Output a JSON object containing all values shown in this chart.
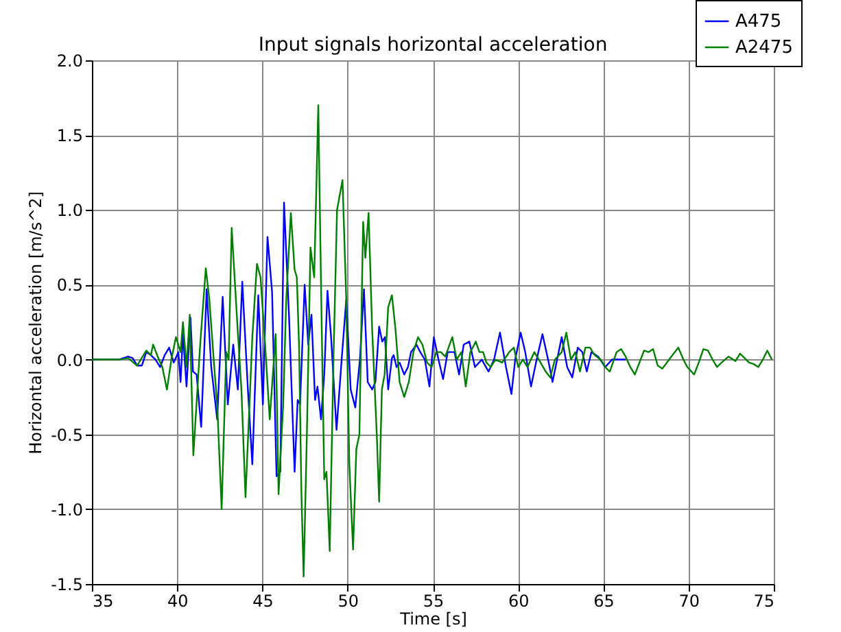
{
  "chart_data": {
    "type": "line",
    "title": "Input signals horizontal acceleration",
    "xlabel": "Time [s]",
    "ylabel": "Horizontal acceleration [m/s^2]",
    "xlim": [
      35,
      75
    ],
    "xticks": [
      35,
      40,
      45,
      50,
      55,
      60,
      65,
      70,
      75
    ],
    "ylim": [
      -1.5,
      2.0
    ],
    "yticks": [
      {
        "value": -1.5,
        "label": "-1.5"
      },
      {
        "value": -1.0,
        "label": "-1.0"
      },
      {
        "value": -0.5,
        "label": "-0.5"
      },
      {
        "value": 0.0,
        "label": "0.0"
      },
      {
        "value": 0.5,
        "label": "0.5"
      },
      {
        "value": 1.0,
        "label": "1.0"
      },
      {
        "value": 1.5,
        "label": "1.5"
      },
      {
        "value": 2.0,
        "label": "2.0"
      }
    ],
    "grid": true,
    "legend": "top right",
    "marker": "none",
    "line_style": "solid",
    "series": [
      {
        "name": "A475",
        "color": "#0000ff",
        "x": [
          35.0,
          36.58,
          37.12,
          37.39,
          37.66,
          37.93,
          38.19,
          38.46,
          38.73,
          39.0,
          39.27,
          39.53,
          39.8,
          40.07,
          40.2,
          40.34,
          40.55,
          40.78,
          40.93,
          41.14,
          41.41,
          41.73,
          42.0,
          42.35,
          42.67,
          42.97,
          43.29,
          43.56,
          43.82,
          44.15,
          44.41,
          44.76,
          45.03,
          45.3,
          45.57,
          45.83,
          46.05,
          46.27,
          46.56,
          46.89,
          47.07,
          47.21,
          47.48,
          47.69,
          47.88,
          48.09,
          48.23,
          48.44,
          48.63,
          48.82,
          49.03,
          49.35,
          49.65,
          49.92,
          50.18,
          50.45,
          50.72,
          50.96,
          51.18,
          51.44,
          51.63,
          51.85,
          52.03,
          52.19,
          52.38,
          52.6,
          52.7,
          52.87,
          53.05,
          53.32,
          53.54,
          53.72,
          54.04,
          54.26,
          54.53,
          54.8,
          55.06,
          55.33,
          55.6,
          55.87,
          56.27,
          56.54,
          56.81,
          57.14,
          57.47,
          57.87,
          58.27,
          58.59,
          58.94,
          59.29,
          59.61,
          59.83,
          60.15,
          60.42,
          60.76,
          61.09,
          61.43,
          61.76,
          62.02,
          62.29,
          62.56,
          62.88,
          63.18,
          63.5,
          63.77,
          64.03,
          64.3,
          64.7,
          65.11,
          65.51,
          66.31
        ],
        "values": [
          0,
          0,
          0.02,
          0.01,
          -0.04,
          -0.04,
          0.05,
          0.03,
          0.0,
          -0.05,
          0.03,
          0.08,
          -0.02,
          0.05,
          -0.15,
          0.17,
          -0.18,
          0.28,
          -0.08,
          -0.1,
          -0.45,
          0.47,
          -0.05,
          -0.4,
          0.42,
          -0.3,
          0.1,
          -0.2,
          0.52,
          -0.2,
          -0.7,
          0.43,
          -0.3,
          0.82,
          0.45,
          -0.78,
          -0.75,
          1.05,
          0.3,
          -0.75,
          -0.27,
          -0.3,
          0.5,
          0.1,
          0.3,
          -0.27,
          -0.18,
          -0.4,
          -0.1,
          0.46,
          0.15,
          -0.47,
          0.0,
          0.4,
          -0.2,
          -0.32,
          0.0,
          0.47,
          -0.15,
          -0.2,
          -0.15,
          0.22,
          0.12,
          0.15,
          -0.2,
          0.01,
          0.03,
          -0.05,
          -0.02,
          -0.1,
          -0.05,
          0.05,
          0.1,
          0.05,
          0.0,
          -0.18,
          0.15,
          0.0,
          -0.13,
          0.05,
          0.05,
          -0.1,
          0.1,
          0.12,
          -0.05,
          0.0,
          -0.08,
          0.0,
          0.18,
          -0.05,
          -0.23,
          0.0,
          0.18,
          0.05,
          -0.18,
          0.0,
          0.17,
          0.0,
          -0.15,
          0.0,
          0.15,
          -0.05,
          -0.12,
          0.08,
          0.05,
          -0.08,
          0.05,
          0.02,
          -0.05,
          0.0,
          0.0
        ]
      },
      {
        "name": "A2475",
        "color": "#008000",
        "x": [
          35.0,
          36.58,
          37.12,
          37.65,
          38.19,
          38.46,
          38.59,
          38.86,
          39.13,
          39.4,
          39.66,
          39.93,
          40.2,
          40.34,
          40.55,
          40.74,
          40.95,
          41.35,
          41.68,
          41.89,
          42.21,
          42.35,
          42.61,
          42.88,
          43.02,
          43.2,
          43.55,
          43.77,
          44.01,
          44.28,
          44.41,
          44.68,
          44.89,
          45.16,
          45.43,
          45.78,
          45.95,
          46.22,
          46.4,
          46.67,
          46.89,
          47.02,
          47.15,
          47.29,
          47.42,
          47.61,
          47.82,
          48.04,
          48.28,
          48.44,
          48.63,
          48.76,
          48.95,
          49.17,
          49.38,
          49.7,
          49.92,
          50.1,
          50.32,
          50.51,
          50.69,
          50.91,
          51.04,
          51.23,
          51.44,
          51.71,
          51.85,
          52.01,
          52.17,
          52.38,
          52.6,
          52.81,
          53.05,
          53.32,
          53.59,
          53.86,
          54.13,
          54.39,
          54.66,
          54.93,
          55.2,
          55.47,
          55.73,
          56.14,
          56.4,
          56.67,
          56.93,
          57.2,
          57.52,
          57.73,
          57.95,
          58.14,
          58.4,
          58.67,
          59.07,
          59.48,
          59.75,
          60.01,
          60.28,
          60.55,
          60.95,
          61.22,
          61.62,
          61.89,
          62.16,
          62.56,
          62.83,
          63.1,
          63.36,
          63.63,
          63.95,
          64.22,
          64.49,
          64.84,
          65.11,
          65.38,
          65.78,
          66.05,
          66.31,
          66.58,
          66.85,
          67.12,
          67.39,
          67.65,
          67.92,
          68.19,
          68.46,
          68.73,
          68.99,
          69.4,
          69.7,
          69.93,
          70.33,
          70.6,
          70.87,
          71.14,
          71.41,
          71.67,
          71.94,
          72.35,
          72.75,
          73.02,
          73.29,
          73.55,
          73.82,
          74.09,
          74.36,
          74.62,
          74.89
        ],
        "values": [
          0,
          0,
          0.01,
          -0.04,
          0.06,
          0.03,
          0.1,
          0.02,
          -0.05,
          -0.2,
          0.0,
          0.15,
          0.05,
          0.25,
          -0.05,
          0.3,
          -0.64,
          0.1,
          0.61,
          0.4,
          -0.1,
          -0.3,
          -1.0,
          0.05,
          0.0,
          0.88,
          0.2,
          -0.2,
          -0.92,
          -0.2,
          0.15,
          0.64,
          0.55,
          0.1,
          -0.4,
          0.17,
          -0.9,
          -0.3,
          0.4,
          0.98,
          0.6,
          0.55,
          0.1,
          -0.9,
          -1.45,
          -0.5,
          0.75,
          0.55,
          1.7,
          0.5,
          -0.8,
          -0.75,
          -1.28,
          0.0,
          1.0,
          1.2,
          0.4,
          -0.7,
          -1.27,
          -0.6,
          -0.5,
          0.92,
          0.68,
          0.98,
          0.2,
          -0.5,
          -0.95,
          -0.2,
          -0.1,
          0.35,
          0.43,
          0.2,
          -0.15,
          -0.25,
          -0.15,
          0.05,
          0.15,
          0.1,
          -0.02,
          -0.05,
          0.05,
          0.05,
          0.02,
          0.15,
          0.0,
          0.05,
          -0.18,
          0.05,
          0.12,
          0.05,
          0.05,
          -0.02,
          -0.05,
          0.0,
          -0.02,
          0.05,
          0.08,
          -0.05,
          0.0,
          -0.05,
          0.05,
          0.0,
          -0.08,
          -0.12,
          0.0,
          0.05,
          0.18,
          0.0,
          0.05,
          -0.08,
          0.08,
          0.08,
          0.03,
          0.0,
          -0.05,
          -0.08,
          0.05,
          0.07,
          0.02,
          -0.05,
          -0.1,
          -0.02,
          0.06,
          0.05,
          0.07,
          -0.04,
          -0.06,
          -0.02,
          0.02,
          0.08,
          0.0,
          -0.05,
          -0.1,
          -0.02,
          0.07,
          0.06,
          0.0,
          -0.05,
          -0.02,
          0.02,
          -0.01,
          0.04,
          0.01,
          -0.02,
          -0.03,
          -0.05,
          0.0,
          0.06,
          0.0
        ]
      }
    ]
  }
}
